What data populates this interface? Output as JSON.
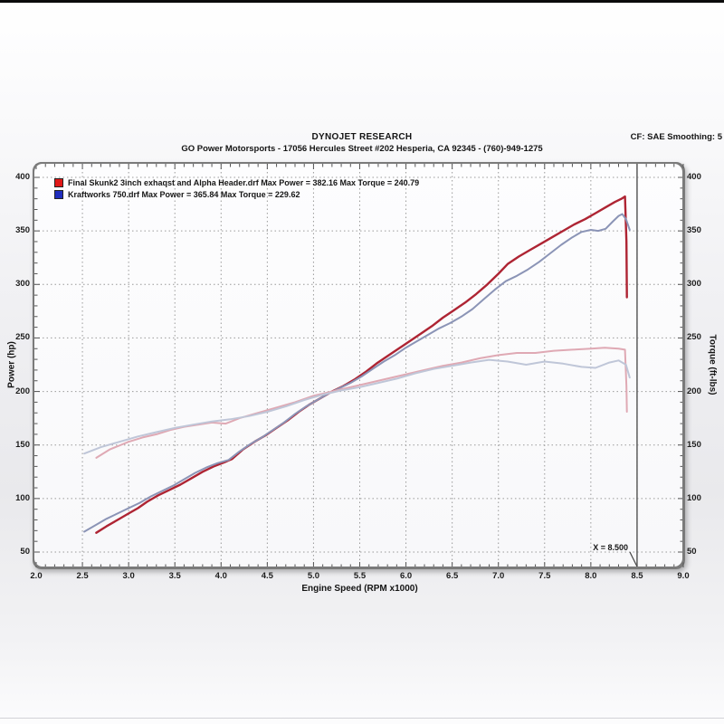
{
  "header": {
    "title": "DYNOJET RESEARCH",
    "subtitle": "GO Power Motorsports - 17056 Hercules Street #202 Hesperia, CA 92345 - (760)-949-1275",
    "cf_label": "CF: SAE  Smoothing: 5"
  },
  "chart_data": {
    "type": "line",
    "title": "DYNOJET RESEARCH",
    "xlabel": "Engine Speed (RPM x1000)",
    "ylabel_left": "Power (hp)",
    "ylabel_right": "Torque (ft-lbs)",
    "xlim": [
      2.0,
      9.0
    ],
    "ylim": [
      50,
      400
    ],
    "grid": "dotted",
    "legend_position": "top-left",
    "x_ticks": [
      "2.0",
      "2.5",
      "3.0",
      "3.5",
      "4.0",
      "4.5",
      "5.0",
      "5.5",
      "6.0",
      "6.5",
      "7.0",
      "7.5",
      "8.0",
      "8.5",
      "9.0"
    ],
    "y_ticks_left": [
      "400",
      "350",
      "300",
      "250",
      "200",
      "150",
      "100",
      "50"
    ],
    "y_ticks_right": [
      "400",
      "350",
      "300",
      "250",
      "200",
      "150",
      "100",
      "50"
    ],
    "cursor": {
      "x": 8.5,
      "label": "X = 8.500"
    },
    "legend": [
      {
        "swatch_color": "#e01818",
        "label": "Final Skunk2 3inch exhaqst and Alpha Header.drf Max Power = 382.16 Max Torque = 240.79"
      },
      {
        "swatch_color": "#1f2dbd",
        "label": "Kraftworks 750.drf Max Power = 365.84 Max Torque = 229.62"
      }
    ],
    "series": [
      {
        "name": "power-final-skunk2",
        "axis": "left",
        "color": "#ae2433",
        "width": 2.4,
        "points": [
          [
            2.65,
            68
          ],
          [
            2.76,
            74
          ],
          [
            2.88,
            80
          ],
          [
            3.0,
            86
          ],
          [
            3.1,
            91
          ],
          [
            3.2,
            97
          ],
          [
            3.32,
            103
          ],
          [
            3.44,
            108
          ],
          [
            3.56,
            113
          ],
          [
            3.68,
            119
          ],
          [
            3.8,
            125
          ],
          [
            3.92,
            130
          ],
          [
            4.04,
            134
          ],
          [
            4.12,
            137
          ],
          [
            4.24,
            146
          ],
          [
            4.36,
            153
          ],
          [
            4.48,
            159
          ],
          [
            4.6,
            166
          ],
          [
            4.72,
            173
          ],
          [
            4.84,
            181
          ],
          [
            4.96,
            188
          ],
          [
            5.08,
            194
          ],
          [
            5.2,
            200
          ],
          [
            5.32,
            205
          ],
          [
            5.44,
            211
          ],
          [
            5.56,
            218
          ],
          [
            5.68,
            226
          ],
          [
            5.8,
            233
          ],
          [
            5.92,
            240
          ],
          [
            6.04,
            247
          ],
          [
            6.16,
            254
          ],
          [
            6.28,
            261
          ],
          [
            6.4,
            269
          ],
          [
            6.52,
            276
          ],
          [
            6.64,
            283
          ],
          [
            6.76,
            291
          ],
          [
            6.88,
            300
          ],
          [
            7.0,
            310
          ],
          [
            7.1,
            319
          ],
          [
            7.22,
            326
          ],
          [
            7.34,
            332
          ],
          [
            7.46,
            338
          ],
          [
            7.58,
            344
          ],
          [
            7.7,
            350
          ],
          [
            7.82,
            356
          ],
          [
            7.94,
            361
          ],
          [
            8.06,
            367
          ],
          [
            8.16,
            372
          ],
          [
            8.26,
            377
          ],
          [
            8.33,
            380
          ],
          [
            8.37,
            382.2
          ],
          [
            8.385,
            340
          ],
          [
            8.39,
            288
          ]
        ]
      },
      {
        "name": "power-kraftworks-750",
        "axis": "left",
        "color": "#8b94b6",
        "width": 2.0,
        "points": [
          [
            2.52,
            69
          ],
          [
            2.64,
            75
          ],
          [
            2.76,
            81
          ],
          [
            2.88,
            86
          ],
          [
            3.0,
            91
          ],
          [
            3.12,
            96
          ],
          [
            3.24,
            102
          ],
          [
            3.36,
            107
          ],
          [
            3.48,
            112
          ],
          [
            3.6,
            118
          ],
          [
            3.72,
            124
          ],
          [
            3.84,
            129
          ],
          [
            3.96,
            133
          ],
          [
            4.08,
            136
          ],
          [
            4.2,
            144
          ],
          [
            4.32,
            151
          ],
          [
            4.44,
            157
          ],
          [
            4.56,
            164
          ],
          [
            4.68,
            171
          ],
          [
            4.8,
            179
          ],
          [
            4.92,
            186
          ],
          [
            5.04,
            192
          ],
          [
            5.16,
            198
          ],
          [
            5.28,
            203
          ],
          [
            5.4,
            208
          ],
          [
            5.52,
            214
          ],
          [
            5.64,
            221
          ],
          [
            5.76,
            228
          ],
          [
            5.88,
            234
          ],
          [
            6.0,
            241
          ],
          [
            6.12,
            247
          ],
          [
            6.24,
            253
          ],
          [
            6.36,
            259
          ],
          [
            6.48,
            264
          ],
          [
            6.6,
            270
          ],
          [
            6.72,
            277
          ],
          [
            6.84,
            286
          ],
          [
            6.96,
            295
          ],
          [
            7.08,
            303
          ],
          [
            7.2,
            308
          ],
          [
            7.32,
            314
          ],
          [
            7.44,
            321
          ],
          [
            7.56,
            329
          ],
          [
            7.68,
            337
          ],
          [
            7.8,
            344
          ],
          [
            7.9,
            349
          ],
          [
            8.0,
            351
          ],
          [
            8.08,
            350
          ],
          [
            8.16,
            352
          ],
          [
            8.24,
            359
          ],
          [
            8.3,
            364
          ],
          [
            8.34,
            365.8
          ],
          [
            8.38,
            361
          ],
          [
            8.42,
            351
          ]
        ]
      },
      {
        "name": "torque-final-skunk2",
        "axis": "right",
        "color": "#dfa9b4",
        "width": 2.0,
        "points": [
          [
            2.65,
            138
          ],
          [
            2.8,
            146
          ],
          [
            3.0,
            153
          ],
          [
            3.15,
            157
          ],
          [
            3.3,
            160
          ],
          [
            3.45,
            164
          ],
          [
            3.6,
            167
          ],
          [
            3.75,
            169
          ],
          [
            3.9,
            171
          ],
          [
            4.05,
            170
          ],
          [
            4.2,
            175
          ],
          [
            4.4,
            180
          ],
          [
            4.6,
            185
          ],
          [
            4.8,
            190
          ],
          [
            5.0,
            196
          ],
          [
            5.2,
            200
          ],
          [
            5.4,
            204
          ],
          [
            5.6,
            208
          ],
          [
            5.8,
            212
          ],
          [
            6.0,
            216
          ],
          [
            6.2,
            220
          ],
          [
            6.4,
            224
          ],
          [
            6.6,
            227
          ],
          [
            6.8,
            231
          ],
          [
            7.0,
            234
          ],
          [
            7.2,
            236
          ],
          [
            7.4,
            236
          ],
          [
            7.6,
            238
          ],
          [
            7.8,
            239
          ],
          [
            8.0,
            240
          ],
          [
            8.15,
            240.8
          ],
          [
            8.3,
            240
          ],
          [
            8.37,
            239
          ],
          [
            8.385,
            205
          ],
          [
            8.39,
            181
          ]
        ]
      },
      {
        "name": "torque-kraftworks-750",
        "axis": "right",
        "color": "#bfc6d8",
        "width": 2.0,
        "points": [
          [
            2.52,
            142
          ],
          [
            2.7,
            148
          ],
          [
            2.9,
            153
          ],
          [
            3.1,
            158
          ],
          [
            3.3,
            162
          ],
          [
            3.5,
            166
          ],
          [
            3.7,
            169
          ],
          [
            3.9,
            172
          ],
          [
            4.1,
            174
          ],
          [
            4.3,
            177
          ],
          [
            4.5,
            181
          ],
          [
            4.7,
            186
          ],
          [
            4.9,
            192
          ],
          [
            5.1,
            197
          ],
          [
            5.3,
            201
          ],
          [
            5.5,
            204
          ],
          [
            5.7,
            208
          ],
          [
            5.9,
            212
          ],
          [
            6.1,
            217
          ],
          [
            6.3,
            221
          ],
          [
            6.5,
            224
          ],
          [
            6.7,
            227
          ],
          [
            6.9,
            229.6
          ],
          [
            7.1,
            228
          ],
          [
            7.3,
            225
          ],
          [
            7.5,
            228
          ],
          [
            7.7,
            226
          ],
          [
            7.9,
            223
          ],
          [
            8.05,
            222
          ],
          [
            8.2,
            227
          ],
          [
            8.3,
            229
          ],
          [
            8.38,
            225
          ],
          [
            8.42,
            213
          ]
        ]
      }
    ]
  }
}
